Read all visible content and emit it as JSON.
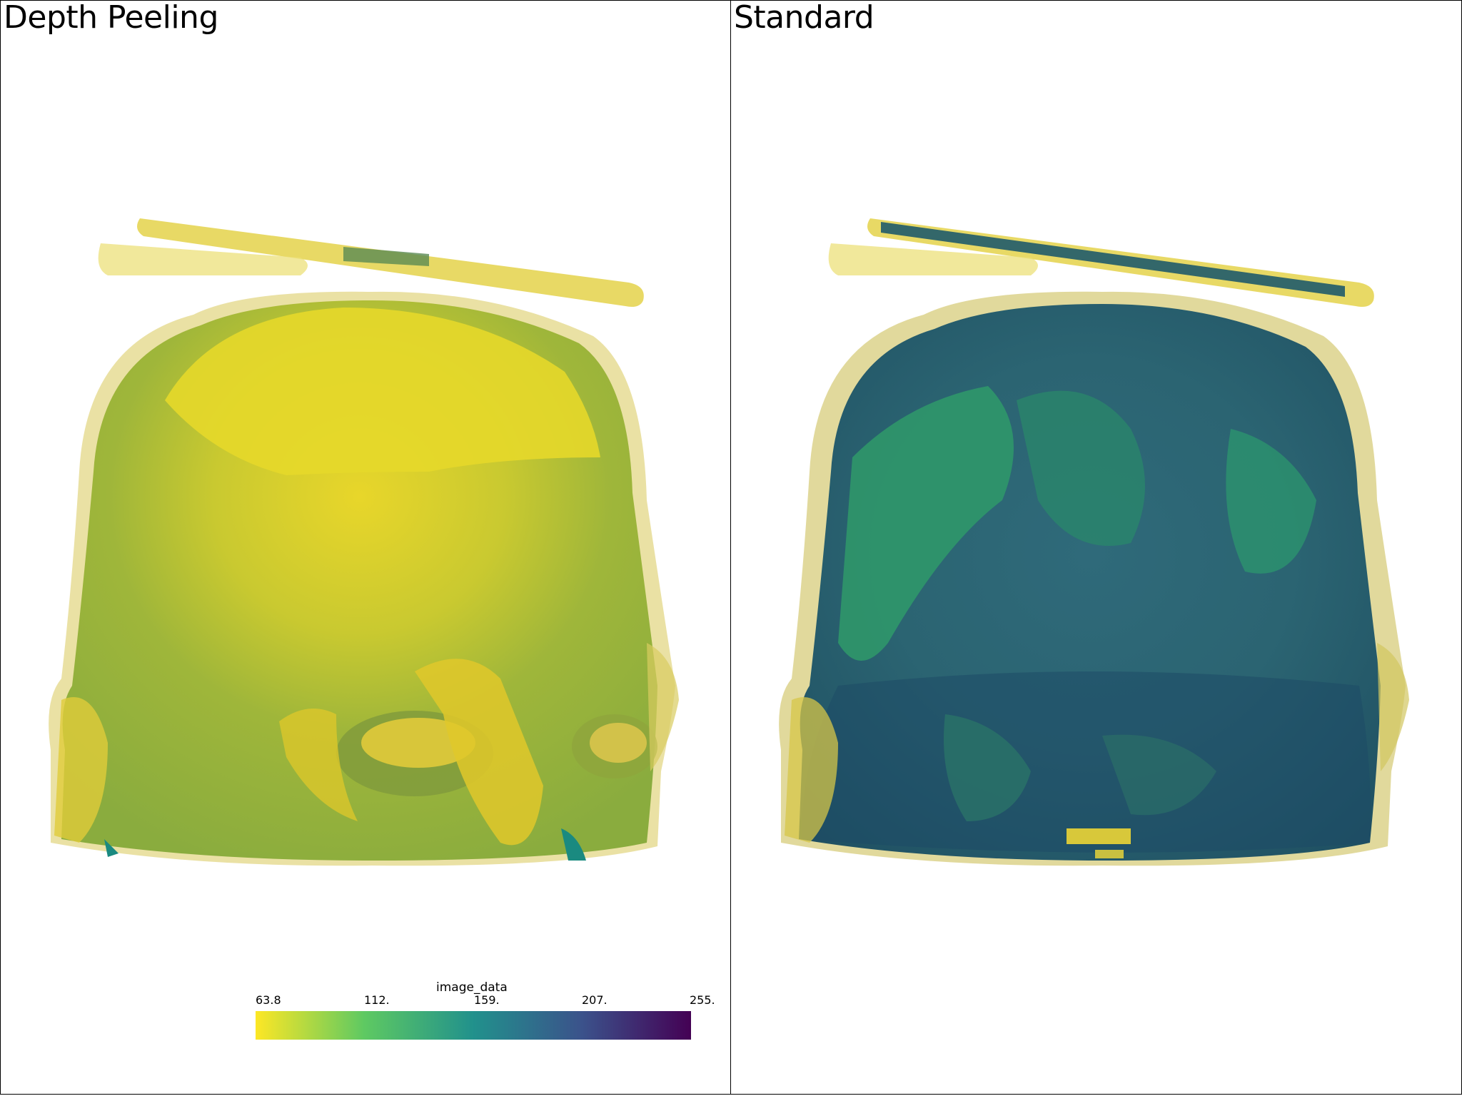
{
  "viewports": {
    "left": {
      "title": "Depth Peeling"
    },
    "right": {
      "title": "Standard"
    }
  },
  "scalar_bar": {
    "title": "image_data",
    "ticks": [
      "63.8",
      "112.",
      "159.",
      "207.",
      "255."
    ],
    "colormap": "viridis-reversed",
    "colors": [
      "#fde725",
      "#5ec962",
      "#21918c",
      "#3b528b",
      "#440154"
    ]
  },
  "colors": {
    "left_head": "#9fb63a",
    "left_skin": "#e6d32a",
    "right_head": "#2a5d6e",
    "right_skin": "#cdbf5a"
  }
}
